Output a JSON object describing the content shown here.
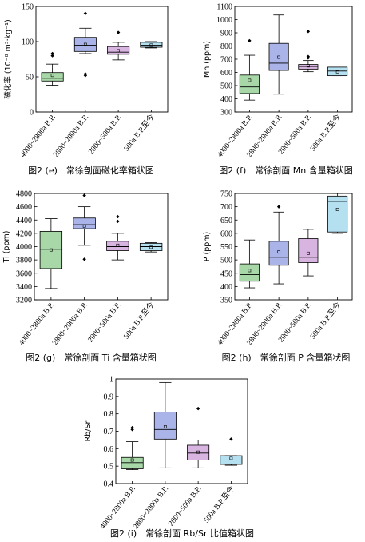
{
  "chart_data": [
    {
      "type": "box",
      "caption": "图2 (e)　常徐剖面磁化率箱状图",
      "ylabel": "磁化率 (10⁻⁸ m³·kg⁻¹)",
      "ylim": [
        0,
        150
      ],
      "yticks": [
        0,
        50,
        100,
        150
      ],
      "categories": [
        "4000~2800a B.P.",
        "2800~2000a B.P.",
        "2000~500a B.P.",
        "500a B.P.至今"
      ],
      "colors": [
        "#a8d8a8",
        "#aab4e8",
        "#d8b4e0",
        "#b4e0f0"
      ],
      "boxes": [
        {
          "min": 38,
          "q1": 44,
          "median": 48,
          "q3": 56,
          "max": 68,
          "mean": 52,
          "outliers": [
            80,
            83
          ]
        },
        {
          "min": 83,
          "q1": 86,
          "median": 95,
          "q3": 106,
          "max": 119,
          "mean": 96,
          "outliers": [
            52,
            54,
            140
          ]
        },
        {
          "min": 74,
          "q1": 82,
          "median": 85,
          "q3": 93,
          "max": 99,
          "mean": 87,
          "outliers": [
            113
          ]
        },
        {
          "min": 91,
          "q1": 92,
          "median": 95,
          "q3": 99,
          "max": 100,
          "mean": 95,
          "outliers": []
        }
      ]
    },
    {
      "type": "box",
      "caption": "图2 (f)　常徐剖面 Mn 含量箱状图",
      "ylabel": "Mn (ppm)",
      "ylim": [
        300,
        1100
      ],
      "yticks": [
        300,
        400,
        500,
        600,
        700,
        800,
        900,
        1000,
        1100
      ],
      "categories": [
        "4000~2800a B.P.",
        "2800~2000a B.P.",
        "2000~500a B.P.",
        "500a B.P.至今"
      ],
      "colors": [
        "#a8d8a8",
        "#aab4e8",
        "#d8b4e0",
        "#b4e0f0"
      ],
      "boxes": [
        {
          "min": 390,
          "q1": 440,
          "median": 490,
          "q3": 580,
          "max": 730,
          "mean": 540,
          "outliers": [
            840
          ]
        },
        {
          "min": 435,
          "q1": 615,
          "median": 670,
          "q3": 820,
          "max": 1035,
          "mean": 715,
          "outliers": []
        },
        {
          "min": 605,
          "q1": 625,
          "median": 645,
          "q3": 660,
          "max": 690,
          "mean": 650,
          "outliers": [
            910,
            720,
            710
          ]
        },
        {
          "min": 575,
          "q1": 575,
          "median": 610,
          "q3": 640,
          "max": 640,
          "mean": 605,
          "outliers": []
        }
      ]
    },
    {
      "type": "box",
      "caption": "图2 (g)　常徐剖面 Ti 含量箱状图",
      "ylabel": "Ti (ppm)",
      "ylim": [
        3200,
        4800
      ],
      "yticks": [
        3200,
        3400,
        3600,
        3800,
        4000,
        4200,
        4400,
        4600,
        4800
      ],
      "categories": [
        "4000~2800a B.P.",
        "2800~2000a B.P.",
        "2000~500a B.P.",
        "500a B.P.至今"
      ],
      "colors": [
        "#a8d8a8",
        "#aab4e8",
        "#d8b4e0",
        "#b4e0f0"
      ],
      "boxes": [
        {
          "min": 3370,
          "q1": 3670,
          "median": 3960,
          "q3": 4230,
          "max": 4420,
          "mean": 3950,
          "outliers": []
        },
        {
          "min": 4020,
          "q1": 4270,
          "median": 4330,
          "q3": 4430,
          "max": 4600,
          "mean": 4310,
          "outliers": [
            4770,
            3810
          ]
        },
        {
          "min": 3800,
          "q1": 3940,
          "median": 4000,
          "q3": 4080,
          "max": 4200,
          "mean": 4020,
          "outliers": [
            4450,
            4380
          ]
        },
        {
          "min": 3920,
          "q1": 3940,
          "median": 4000,
          "q3": 4050,
          "max": 4060,
          "mean": 3990,
          "outliers": []
        }
      ]
    },
    {
      "type": "box",
      "caption": "图2 (h)　常徐剖面 P 含量箱状图",
      "ylabel": "P (ppm)",
      "ylim": [
        350,
        750
      ],
      "yticks": [
        350,
        400,
        450,
        500,
        550,
        600,
        650,
        700,
        750
      ],
      "categories": [
        "4000~2800a B.P.",
        "2800~2000a B.P.",
        "2000~500a B.P.",
        "500a B.P.至今"
      ],
      "colors": [
        "#a8d8a8",
        "#aab4e8",
        "#d8b4e0",
        "#b4e0f0"
      ],
      "boxes": [
        {
          "min": 395,
          "q1": 420,
          "median": 445,
          "q3": 485,
          "max": 575,
          "mean": 460,
          "outliers": []
        },
        {
          "min": 410,
          "q1": 480,
          "median": 510,
          "q3": 570,
          "max": 680,
          "mean": 530,
          "outliers": [
            700
          ]
        },
        {
          "min": 440,
          "q1": 490,
          "median": 510,
          "q3": 580,
          "max": 615,
          "mean": 525,
          "outliers": []
        },
        {
          "min": 600,
          "q1": 605,
          "median": 720,
          "q3": 740,
          "max": 750,
          "mean": 690,
          "outliers": []
        }
      ]
    },
    {
      "type": "box",
      "caption": "图2 (i)　常徐剖面 Rb/Sr 比值箱状图",
      "ylabel": "Rb/Sr",
      "ylim": [
        0.4,
        1.0
      ],
      "yticks": [
        0.4,
        0.5,
        0.6,
        0.7,
        0.8,
        0.9,
        1.0
      ],
      "categories": [
        "4000~2800a B.P.",
        "2800~2000a B.P.",
        "2000~500a B.P.",
        "500a B.P.至今"
      ],
      "colors": [
        "#a8d8a8",
        "#aab4e8",
        "#d8b4e0",
        "#b4e0f0"
      ],
      "boxes": [
        {
          "min": 0.48,
          "q1": 0.485,
          "median": 0.52,
          "q3": 0.55,
          "max": 0.64,
          "mean": 0.535,
          "outliers": [
            0.71,
            0.72
          ]
        },
        {
          "min": 0.49,
          "q1": 0.655,
          "median": 0.71,
          "q3": 0.81,
          "max": 0.98,
          "mean": 0.725,
          "outliers": []
        },
        {
          "min": 0.49,
          "q1": 0.535,
          "median": 0.575,
          "q3": 0.62,
          "max": 0.65,
          "mean": 0.58,
          "outliers": [
            0.83
          ]
        },
        {
          "min": 0.505,
          "q1": 0.51,
          "median": 0.535,
          "q3": 0.56,
          "max": 0.56,
          "mean": 0.545,
          "outliers": [
            0.655
          ]
        }
      ]
    }
  ]
}
